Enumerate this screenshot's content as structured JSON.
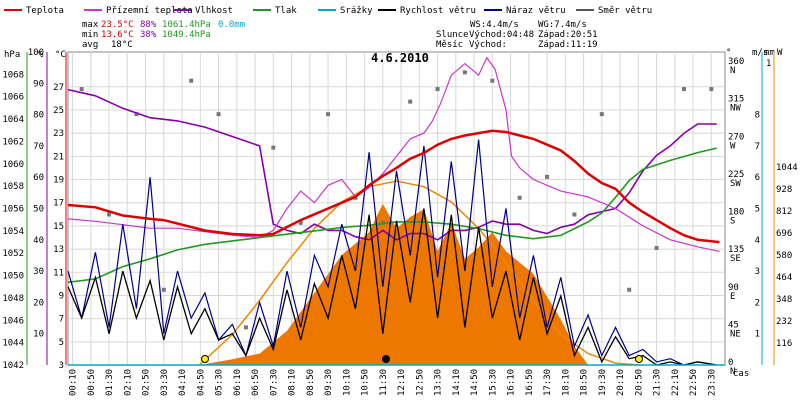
{
  "chart_data": {
    "type": "line",
    "title": "4.6.2010",
    "legend": [
      {
        "name": "Teplota",
        "color": "#dd0000"
      },
      {
        "name": "Přízemní teplota",
        "color": "#cc33cc"
      },
      {
        "name": "Vlhkost",
        "color": "#8800aa"
      },
      {
        "name": "Tlak",
        "color": "#229922"
      },
      {
        "name": "Srážky",
        "color": "#00aacc"
      },
      {
        "name": "Rychlost větru",
        "color": "#000000"
      },
      {
        "name": "Náraz větru",
        "color": "#000088"
      },
      {
        "name": "Směr větru",
        "color": "#555555"
      }
    ],
    "stats": {
      "max_label": "max",
      "max_temp": "23.5°C",
      "max_hum": "88%",
      "max_press": "1061.4hPa",
      "max_rain": "0.0mm",
      "min_label": "min",
      "min_temp": "13.6°C",
      "min_hum": "38%",
      "min_press": "1049.4hPa",
      "avg_label": "avg",
      "avg_temp": "18°C"
    },
    "info": {
      "ws": "WS:4.4m/s",
      "wg": "WG:7.4m/s",
      "sun_label": "Slunce",
      "sunrise": "Východ:04:48",
      "sunset": "Západ:20:51",
      "moon_label": "Měsíc",
      "moonrise": "Východ:",
      "moonset": "Západ:11:19"
    },
    "axes": {
      "hpa": {
        "label": "hPa",
        "ticks": [
          1042,
          1044,
          1046,
          1048,
          1050,
          1052,
          1054,
          1056,
          1058,
          1060,
          1062,
          1064,
          1066,
          1068
        ],
        "range": [
          1042,
          1070
        ]
      },
      "pct": {
        "label": "%",
        "ticks": [
          10,
          20,
          30,
          40,
          50,
          60,
          70,
          80,
          90,
          100
        ],
        "range": [
          0,
          100
        ]
      },
      "degc": {
        "label": "°C",
        "ticks": [
          3,
          5,
          7,
          9,
          11,
          13,
          15,
          17,
          19,
          21,
          23,
          25,
          27
        ],
        "range": [
          3,
          30
        ]
      },
      "wdir": {
        "label": "°",
        "ticks": [
          "360 N",
          "315 NW",
          "270 W",
          "225 SW",
          "180 S",
          "135 SE",
          "90 E",
          "45 NE",
          "0 N"
        ]
      },
      "ms": {
        "label": "m/s",
        "ticks": [
          1,
          2,
          3,
          4,
          5,
          6,
          7,
          8
        ]
      },
      "mm": {
        "label": "mm",
        "ticks": [
          "1"
        ]
      },
      "wm2": {
        "label": "W",
        "ticks": [
          116,
          232,
          348,
          464,
          580,
          696,
          812,
          928,
          1044
        ]
      },
      "time_label": "čas",
      "x_ticks": [
        "00:10",
        "00:50",
        "01:30",
        "02:10",
        "02:50",
        "03:30",
        "04:10",
        "04:50",
        "05:30",
        "06:10",
        "06:50",
        "07:30",
        "08:10",
        "08:50",
        "09:30",
        "10:10",
        "10:50",
        "11:30",
        "12:10",
        "12:50",
        "13:30",
        "14:10",
        "14:50",
        "15:30",
        "16:10",
        "16:50",
        "17:30",
        "18:10",
        "18:50",
        "19:30",
        "20:10",
        "20:50",
        "21:30",
        "22:10",
        "22:50",
        "23:30"
      ]
    },
    "series": [
      {
        "name": "Teplota",
        "unit": "°C",
        "x": [
          0,
          1,
          2,
          3,
          3.5,
          4,
          5,
          6,
          7,
          7.5,
          8,
          8.5,
          9,
          9.5,
          10,
          10.5,
          11,
          11.5,
          12,
          12.5,
          13,
          13.5,
          14,
          14.5,
          15,
          15.5,
          16,
          16.5,
          17,
          17.5,
          18,
          18.5,
          19,
          19.5,
          20,
          20.5,
          21,
          21.5,
          22,
          22.5,
          23,
          23.8
        ],
        "values": [
          16.8,
          16.6,
          15.9,
          15.6,
          15.5,
          15.2,
          14.6,
          14.3,
          14.2,
          14.3,
          14.9,
          15.5,
          16.0,
          16.5,
          17.0,
          17.5,
          18.5,
          19.3,
          20.0,
          20.8,
          21.3,
          22.0,
          22.5,
          22.8,
          23.0,
          23.2,
          23.1,
          22.8,
          22.5,
          22.0,
          21.5,
          20.6,
          19.5,
          18.7,
          18.2,
          17.0,
          16.2,
          15.5,
          14.8,
          14.2,
          13.8,
          13.6
        ]
      },
      {
        "name": "Přízemní teplota",
        "unit": "°C",
        "x": [
          0,
          1,
          2,
          3,
          4,
          5,
          6,
          7,
          7.5,
          8,
          8.5,
          9,
          9.5,
          10,
          10.5,
          11,
          11.5,
          12,
          12.5,
          13,
          13.3,
          13.6,
          14,
          14.5,
          15,
          15.3,
          15.6,
          16,
          16.2,
          16.5,
          17,
          18,
          19,
          20,
          21,
          22,
          23,
          23.8
        ],
        "values": [
          15.6,
          15.4,
          15.1,
          14.8,
          14.8,
          14.5,
          14.2,
          14.0,
          14.6,
          16.5,
          18.0,
          17.0,
          18.5,
          19.0,
          17.5,
          18.3,
          19.5,
          21.0,
          22.5,
          23.0,
          24.0,
          25.5,
          28.0,
          29.0,
          28.0,
          29.5,
          28.5,
          25.0,
          21.0,
          20.0,
          19.0,
          18.0,
          17.5,
          16.5,
          15.0,
          13.8,
          13.2,
          12.8
        ]
      },
      {
        "name": "Vlhkost",
        "unit": "%",
        "x": [
          0,
          1,
          2,
          3,
          4,
          5,
          6,
          7,
          7.5,
          8,
          8.5,
          9,
          9.5,
          10,
          10.5,
          11,
          11.5,
          12,
          12.5,
          13,
          13.5,
          14,
          14.5,
          15,
          15.5,
          16,
          16.5,
          17,
          17.5,
          18,
          18.5,
          19,
          19.5,
          20,
          20.5,
          21,
          21.5,
          22,
          22.5,
          23,
          23.7
        ],
        "values": [
          88,
          86,
          82,
          79,
          78,
          76,
          73,
          70,
          45,
          43,
          42,
          45,
          43,
          43,
          41,
          40,
          43,
          40,
          42,
          42,
          40,
          43,
          43,
          44,
          46,
          45,
          45,
          43,
          42,
          44,
          45,
          48,
          49,
          50,
          55,
          62,
          67,
          70,
          74,
          77,
          77
        ]
      },
      {
        "name": "Tlak",
        "unit": "hPa",
        "x": [
          0,
          1,
          2,
          3,
          4,
          5,
          6,
          7,
          8,
          9,
          10,
          11,
          12,
          13,
          14,
          15,
          16,
          17,
          18,
          19,
          19.5,
          20,
          20.5,
          21,
          22,
          23,
          23.7
        ],
        "values": [
          1049.4,
          1049.7,
          1050.8,
          1051.5,
          1052.3,
          1052.8,
          1053.1,
          1053.4,
          1053.7,
          1054.0,
          1054.3,
          1054.5,
          1054.8,
          1054.8,
          1054.6,
          1054.2,
          1053.6,
          1053.3,
          1053.6,
          1054.8,
          1055.6,
          1057.0,
          1058.5,
          1059.5,
          1060.3,
          1061.0,
          1061.4
        ]
      },
      {
        "name": "Rychlost větru",
        "unit": "m/s",
        "x": [
          0,
          0.5,
          1,
          1.5,
          2,
          2.5,
          3,
          3.5,
          4,
          4.5,
          5,
          5.5,
          6,
          6.5,
          7,
          7.5,
          8,
          8.5,
          9,
          9.5,
          10,
          10.5,
          11,
          11.5,
          12,
          12.5,
          13,
          13.5,
          14,
          14.5,
          15,
          15.5,
          16,
          16.5,
          17,
          17.5,
          18,
          18.5,
          19,
          19.5,
          20,
          20.5,
          21,
          21.5,
          22,
          22.5,
          23,
          23.7
        ],
        "values": [
          2.5,
          1.5,
          2.8,
          1.0,
          3.0,
          1.5,
          2.7,
          0.8,
          2.5,
          1.0,
          1.8,
          0.8,
          1.0,
          0.3,
          1.5,
          0.5,
          2.4,
          0.8,
          2.6,
          1.5,
          3.5,
          1.8,
          4.8,
          1.0,
          4.6,
          2.0,
          5.0,
          1.5,
          4.8,
          1.2,
          4.4,
          1.5,
          3.0,
          0.8,
          2.8,
          1.0,
          2.2,
          0.3,
          1.2,
          0.1,
          0.9,
          0.2,
          0.3,
          0.0,
          0.1,
          0.0,
          0.1,
          0.0
        ]
      },
      {
        "name": "Náraz větru",
        "unit": "m/s",
        "x": [
          0,
          0.5,
          1,
          1.5,
          2,
          2.5,
          3,
          3.5,
          4,
          4.5,
          5,
          5.5,
          6,
          6.5,
          7,
          7.5,
          8,
          8.5,
          9,
          9.5,
          10,
          10.5,
          11,
          11.5,
          12,
          12.5,
          13,
          13.5,
          14,
          14.5,
          15,
          15.5,
          16,
          16.5,
          17,
          17.5,
          18,
          18.5,
          19,
          19.5,
          20,
          20.5,
          21,
          21.5,
          22,
          22.5,
          23,
          23.7
        ],
        "values": [
          3.0,
          1.5,
          3.6,
          1.2,
          4.5,
          1.8,
          6.0,
          1.0,
          3.0,
          1.5,
          2.3,
          0.8,
          1.3,
          0.3,
          2.0,
          0.6,
          3.0,
          1.2,
          3.5,
          2.5,
          4.5,
          3.0,
          6.8,
          2.5,
          6.2,
          3.5,
          7.0,
          2.8,
          6.5,
          3.0,
          7.2,
          2.5,
          5.0,
          1.5,
          3.5,
          1.2,
          2.8,
          0.6,
          1.6,
          0.3,
          1.2,
          0.3,
          0.5,
          0.1,
          0.2,
          0.0,
          0.1,
          0.0
        ]
      },
      {
        "name": "Sluneční záření",
        "unit": "W/m²",
        "x": [
          4.8,
          6,
          7,
          8,
          9,
          10,
          11,
          11.5,
          12,
          12.5,
          13,
          13.5,
          14,
          14.5,
          15,
          15.5,
          16,
          16.5,
          17,
          17.5,
          18,
          18.5,
          19
        ],
        "values": [
          0,
          30,
          60,
          180,
          380,
          580,
          700,
          850,
          720,
          780,
          820,
          600,
          750,
          560,
          620,
          700,
          600,
          540,
          480,
          360,
          240,
          100,
          0
        ]
      },
      {
        "name": "Teoretické záření",
        "unit": "W/m²",
        "x": [
          4.8,
          6,
          7,
          8,
          9,
          10,
          11,
          12,
          13,
          14,
          15,
          16,
          17,
          18,
          19,
          20,
          20.85
        ],
        "values": [
          0,
          160,
          340,
          540,
          720,
          860,
          940,
          970,
          940,
          860,
          720,
          540,
          340,
          160,
          60,
          10,
          0
        ]
      },
      {
        "name": "Směr větru",
        "unit": "°",
        "x": [
          0.5,
          1.5,
          2.5,
          3.5,
          4.5,
          5.5,
          6.5,
          7.5,
          8.5,
          9.5,
          10.5,
          11.5,
          12.5,
          13.5,
          14.5,
          15.5,
          16.5,
          17.5,
          18.5,
          19.5,
          20.5,
          21.5,
          22.5,
          23.5
        ],
        "values": [
          330,
          180,
          300,
          90,
          340,
          300,
          45,
          260,
          170,
          300,
          200,
          170,
          315,
          330,
          350,
          340,
          200,
          225,
          180,
          300,
          90,
          140,
          330,
          330
        ]
      }
    ]
  }
}
